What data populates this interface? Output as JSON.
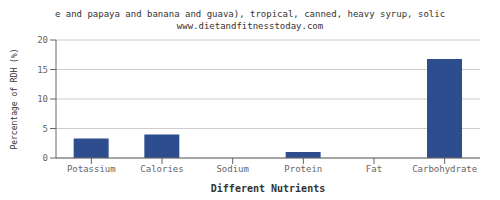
{
  "chart_data": {
    "type": "bar",
    "title": "e and papaya and banana and guava), tropical, canned, heavy syrup, solic",
    "subtitle": "www.dietandfitnesstoday.com",
    "categories": [
      "Potassium",
      "Calories",
      "Sodium",
      "Protein",
      "Fat",
      "Carbohydrate"
    ],
    "values": [
      3.3,
      4.0,
      0.0,
      1.0,
      0.0,
      16.8
    ],
    "color": "#2e4d8e",
    "xlabel": "Different Nutrients",
    "ylabel": "Percentage of RDH (%)",
    "ylim": [
      0,
      20
    ],
    "yticks": [
      0,
      5,
      10,
      15,
      20
    ],
    "grid": true
  }
}
